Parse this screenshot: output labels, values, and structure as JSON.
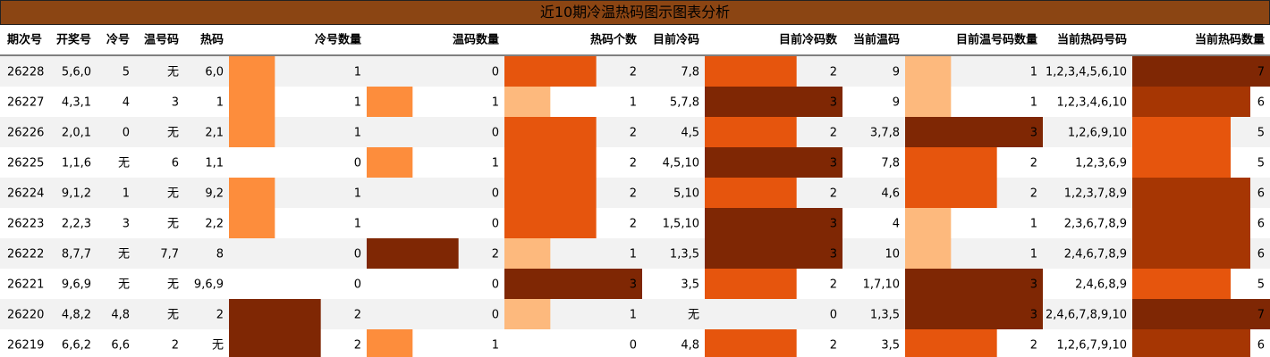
{
  "title": "近10期冷温热码图示图表分析",
  "colors": {
    "level1": "#fdb97d",
    "level1_cold": "#fd8d3c",
    "level2": "#e6550d",
    "level3": "#a63603",
    "level_max": "#7f2704",
    "row_alt": "#f2f2f2"
  },
  "chart_data": {
    "type": "table",
    "columns": [
      "期次号",
      "开奖号",
      "冷号",
      "温号码",
      "热码",
      "冷号数量",
      "温码数量",
      "热码个数",
      "目前冷码",
      "目前冷码数",
      "当前温码",
      "目前温号码数量",
      "当前热码号码",
      "当前热码数量"
    ],
    "rows": [
      [
        "26228",
        "5,6,0",
        "5",
        "无",
        "6,0",
        1,
        0,
        2,
        "7,8",
        2,
        "9",
        1,
        "1,2,3,4,5,6,10",
        7
      ],
      [
        "26227",
        "4,3,1",
        "4",
        "3",
        "1",
        1,
        1,
        1,
        "5,7,8",
        3,
        "9",
        1,
        "1,2,3,4,6,10",
        6
      ],
      [
        "26226",
        "2,0,1",
        "0",
        "无",
        "2,1",
        1,
        0,
        2,
        "4,5",
        2,
        "3,7,8",
        3,
        "1,2,6,9,10",
        5
      ],
      [
        "26225",
        "1,1,6",
        "无",
        "6",
        "1,1",
        0,
        1,
        2,
        "4,5,10",
        3,
        "7,8",
        2,
        "1,2,3,6,9",
        5
      ],
      [
        "26224",
        "9,1,2",
        "1",
        "无",
        "9,2",
        1,
        0,
        2,
        "5,10",
        2,
        "4,6",
        2,
        "1,2,3,7,8,9",
        6
      ],
      [
        "26223",
        "2,2,3",
        "3",
        "无",
        "2,2",
        1,
        0,
        2,
        "1,5,10",
        3,
        "4",
        1,
        "2,3,6,7,8,9",
        6
      ],
      [
        "26222",
        "8,7,7",
        "无",
        "7,7",
        "8",
        0,
        2,
        1,
        "1,3,5",
        3,
        "10",
        1,
        "2,4,6,7,8,9",
        6
      ],
      [
        "26221",
        "9,6,9",
        "无",
        "无",
        "9,6,9",
        0,
        0,
        3,
        "3,5",
        2,
        "1,7,10",
        3,
        "2,4,6,8,9",
        5
      ],
      [
        "26220",
        "4,8,2",
        "4,8",
        "无",
        "2",
        2,
        0,
        1,
        "无",
        0,
        "1,3,5",
        3,
        "2,4,6,7,8,9,10",
        7
      ],
      [
        "26219",
        "6,6,2",
        "6,6",
        "2",
        "无",
        2,
        1,
        0,
        "4,8",
        2,
        "3,5",
        2,
        "1,2,6,7,9,10",
        6
      ]
    ],
    "bar_columns": [
      5,
      6,
      7,
      9,
      11,
      13
    ]
  }
}
